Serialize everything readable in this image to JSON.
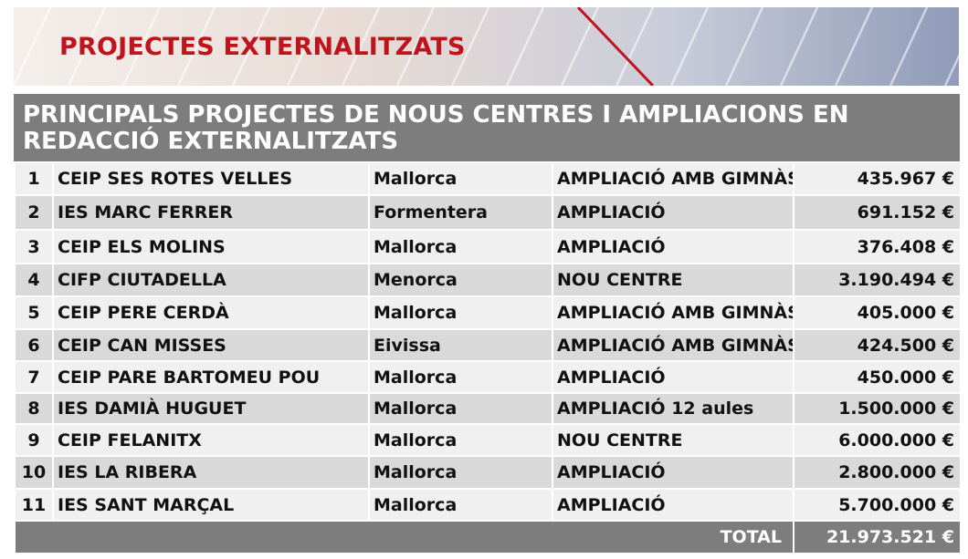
{
  "banner": {
    "title": "PROJECTES EXTERNALITZATS"
  },
  "table": {
    "heading": "PRINCIPALS PROJECTES DE NOUS CENTRES I AMPLIACIONS EN REDACCIÓ EXTERNALITZATS",
    "rows": [
      {
        "num": "1",
        "centre": "CEIP SES ROTES VELLES",
        "illa": "Mallorca",
        "tipus": "AMPLIACIÓ AMB GIMNÀS",
        "import": "435.967 €"
      },
      {
        "num": "2",
        "centre": "IES MARC FERRER",
        "illa": "Formentera",
        "tipus": "AMPLIACIÓ",
        "import": "691.152 €"
      },
      {
        "num": "3",
        "centre": "CEIP ELS MOLINS",
        "illa": "Mallorca",
        "tipus": "AMPLIACIÓ",
        "import": "376.408 €"
      },
      {
        "num": "4",
        "centre": "CIFP CIUTADELLA",
        "illa": "Menorca",
        "tipus": "NOU CENTRE",
        "import": "3.190.494 €"
      },
      {
        "num": "5",
        "centre": "CEIP PERE CERDÀ",
        "illa": "Mallorca",
        "tipus": "AMPLIACIÓ AMB GIMNÀS",
        "import": "405.000 €"
      },
      {
        "num": "6",
        "centre": "CEIP CAN MISSES",
        "illa": "Eivissa",
        "tipus": "AMPLIACIÓ AMB GIMNÀS",
        "import": "424.500 €"
      },
      {
        "num": "7",
        "centre": "CEIP PARE BARTOMEU POU",
        "illa": "Mallorca",
        "tipus": "AMPLIACIÓ",
        "import": "450.000 €"
      },
      {
        "num": "8",
        "centre": "IES DAMIÀ HUGUET",
        "illa": "Mallorca",
        "tipus": "AMPLIACIÓ 12 aules",
        "import": "1.500.000 €"
      },
      {
        "num": "9",
        "centre": "CEIP FELANITX",
        "illa": "Mallorca",
        "tipus": "NOU CENTRE",
        "import": "6.000.000 €"
      },
      {
        "num": "10",
        "centre": "IES LA RIBERA",
        "illa": "Mallorca",
        "tipus": "AMPLIACIÓ",
        "import": "2.800.000 €"
      },
      {
        "num": "11",
        "centre": "IES SANT MARÇAL",
        "illa": "Mallorca",
        "tipus": "AMPLIACIÓ",
        "import": "5.700.000 €"
      }
    ],
    "total": {
      "label": "TOTAL",
      "value": "21.973.521 €"
    }
  },
  "colors": {
    "title_red": "#c0141d",
    "header_gray": "#7d7d7d",
    "row_light": "#f0f0f0",
    "row_dark": "#d9d9d9"
  }
}
